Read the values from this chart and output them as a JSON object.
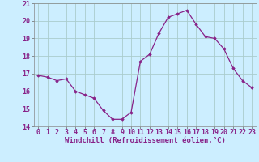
{
  "x": [
    0,
    1,
    2,
    3,
    4,
    5,
    6,
    7,
    8,
    9,
    10,
    11,
    12,
    13,
    14,
    15,
    16,
    17,
    18,
    19,
    20,
    21,
    22,
    23
  ],
  "y": [
    16.9,
    16.8,
    16.6,
    16.7,
    16.0,
    15.8,
    15.6,
    14.9,
    14.4,
    14.4,
    14.8,
    17.7,
    18.1,
    19.3,
    20.2,
    20.4,
    20.6,
    19.8,
    19.1,
    19.0,
    18.4,
    17.3,
    16.6,
    16.2
  ],
  "line_color": "#882288",
  "marker": "D",
  "marker_size": 1.8,
  "bg_color": "#cceeff",
  "grid_color": "#aacccc",
  "xlabel": "Windchill (Refroidissement éolien,°C)",
  "xlabel_fontsize": 6.5,
  "tick_fontsize": 6.0,
  "ylim": [
    14,
    21
  ],
  "xlim": [
    -0.5,
    23.5
  ],
  "yticks": [
    14,
    15,
    16,
    17,
    18,
    19,
    20,
    21
  ],
  "xticks": [
    0,
    1,
    2,
    3,
    4,
    5,
    6,
    7,
    8,
    9,
    10,
    11,
    12,
    13,
    14,
    15,
    16,
    17,
    18,
    19,
    20,
    21,
    22,
    23
  ]
}
